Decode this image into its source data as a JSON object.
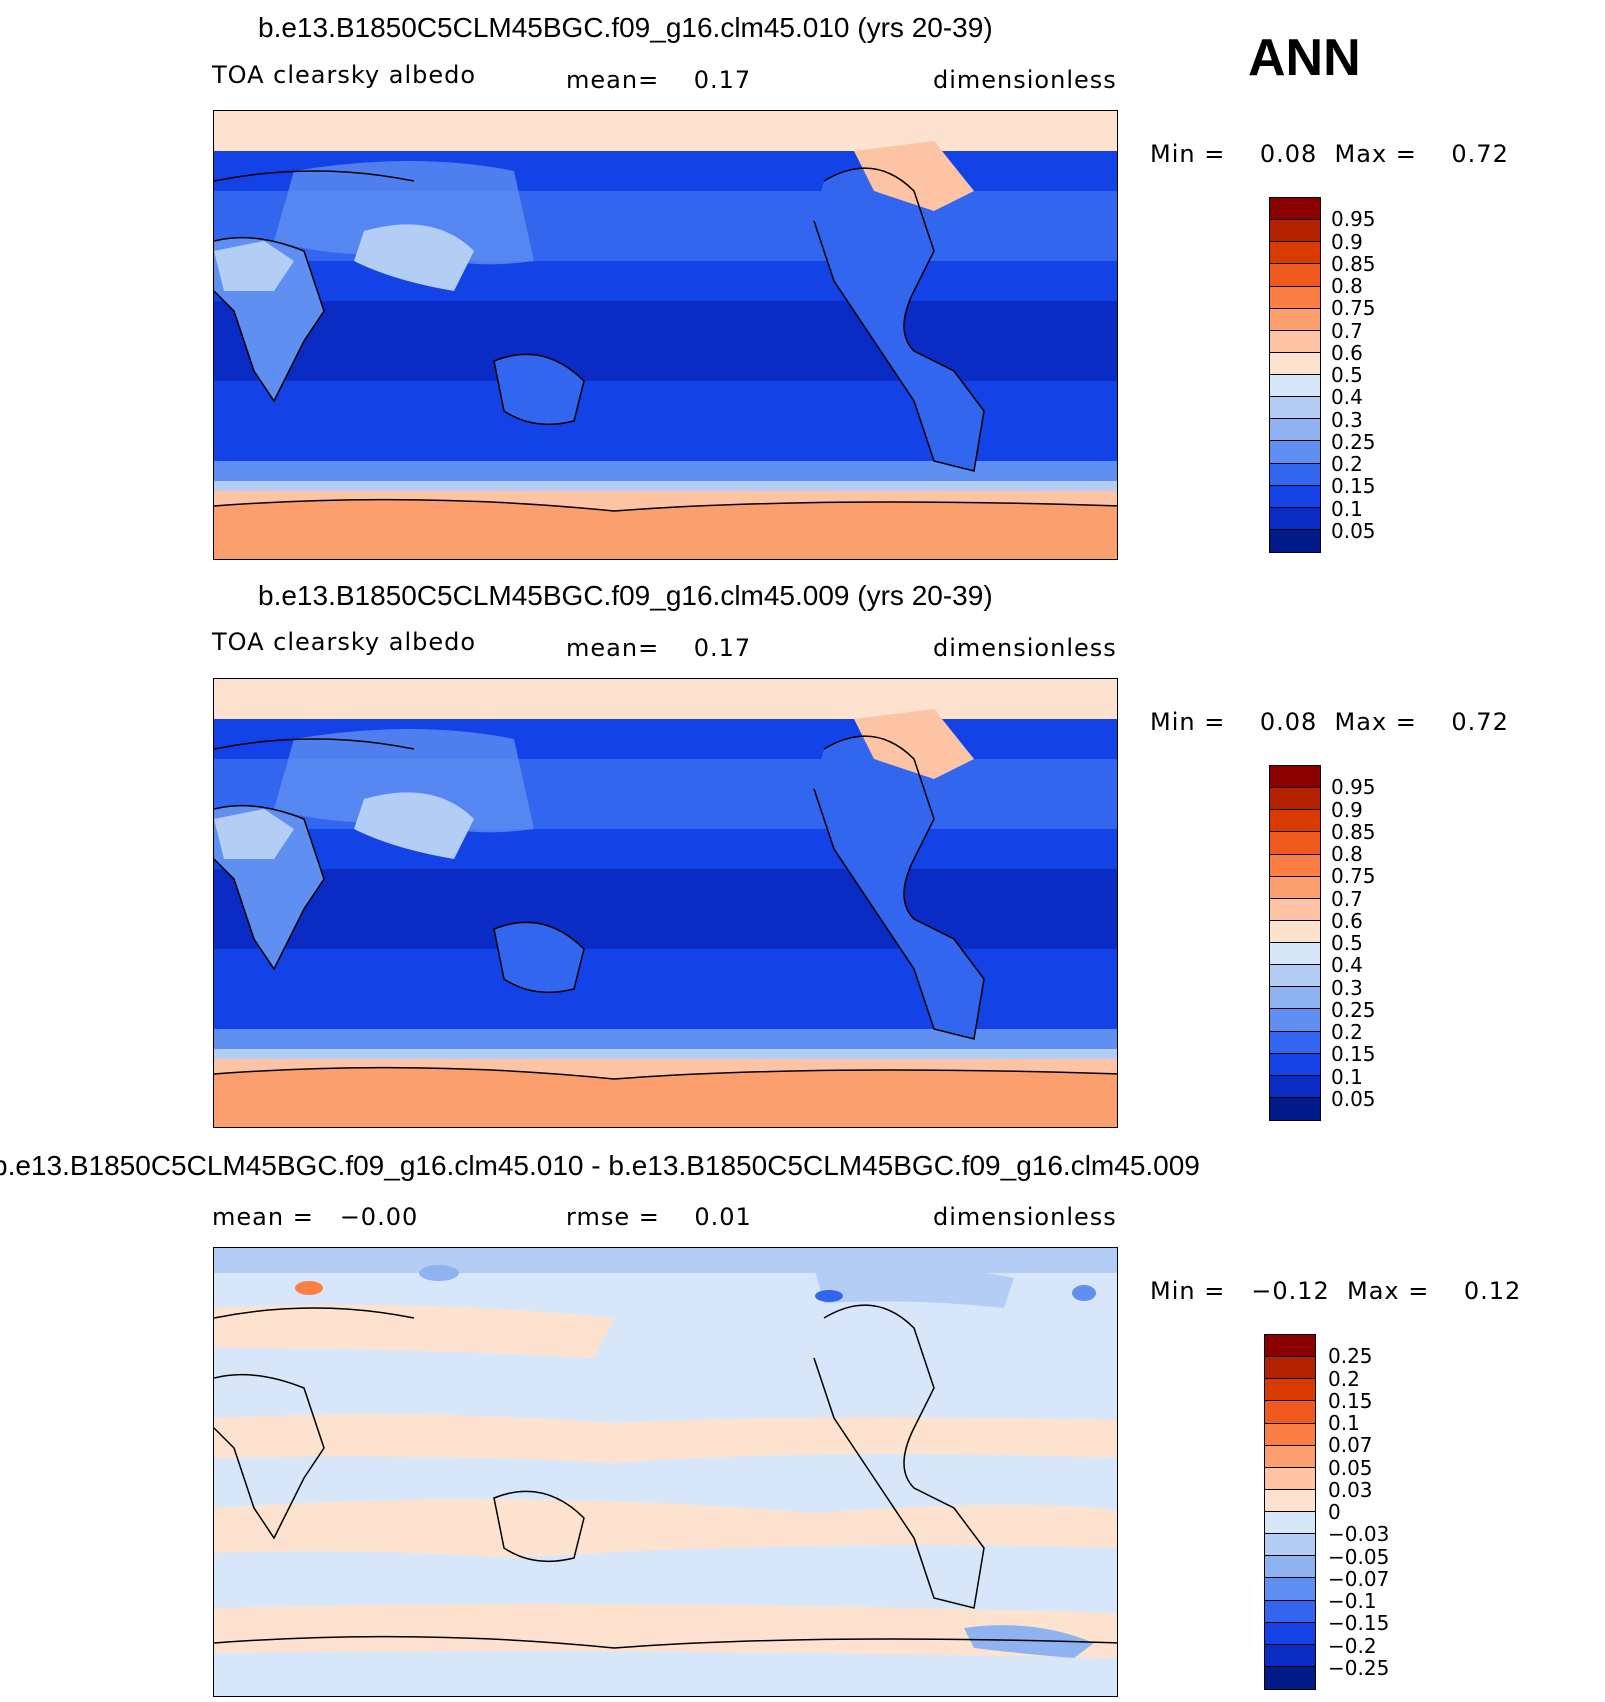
{
  "header": {
    "season": "ANN"
  },
  "panels": [
    {
      "title": "b.e13.B1850C5CLM45BGC.f09_g16.clm45.010 (yrs 20-39)",
      "left_label": "TOA clearsky albedo",
      "center_label": "mean=    0.17",
      "right_label": "dimensionless",
      "min_max": "Min =    0.08  Max =    0.72",
      "type": "absolute"
    },
    {
      "title": "b.e13.B1850C5CLM45BGC.f09_g16.clm45.009 (yrs 20-39)",
      "left_label": "TOA clearsky albedo",
      "center_label": "mean=    0.17",
      "right_label": "dimensionless",
      "min_max": "Min =    0.08  Max =    0.72",
      "type": "absolute"
    },
    {
      "title": "b.e13.B1850C5CLM45BGC.f09_g16.clm45.010 - b.e13.B1850C5CLM45BGC.f09_g16.clm45.009",
      "left_label": "mean =   −0.00",
      "center_label": "rmse =    0.01",
      "right_label": "dimensionless",
      "min_max": "Min =   −0.12  Max =    0.12",
      "type": "difference"
    }
  ],
  "colorbars": {
    "absolute": {
      "labels": [
        "0.95",
        "0.9",
        "0.85",
        "0.8",
        "0.75",
        "0.7",
        "0.6",
        "0.5",
        "0.4",
        "0.3",
        "0.25",
        "0.2",
        "0.15",
        "0.1",
        "0.05"
      ],
      "colors": [
        "#8b0000",
        "#b22200",
        "#d83a00",
        "#f05a1e",
        "#fb7f45",
        "#fc9f6f",
        "#fcc4a4",
        "#fde3cf",
        "#d7e6f8",
        "#b4cdf4",
        "#8fb2f0",
        "#5f8ff0",
        "#3266ee",
        "#1342e6",
        "#0a2bc4",
        "#001a88"
      ]
    },
    "difference": {
      "labels": [
        "0.25",
        "0.2",
        "0.15",
        "0.1",
        "0.07",
        "0.05",
        "0.03",
        "0",
        "−0.03",
        "−0.05",
        "−0.07",
        "−0.1",
        "−0.15",
        "−0.2",
        "−0.25"
      ],
      "colors": [
        "#8b0000",
        "#b22200",
        "#d83a00",
        "#f05a1e",
        "#fb7f45",
        "#fc9f6f",
        "#fcc4a4",
        "#fde3cf",
        "#d7e6f8",
        "#b4cdf4",
        "#8fb2f0",
        "#5f8ff0",
        "#3266ee",
        "#1342e6",
        "#0a2bc4",
        "#001a88"
      ]
    }
  },
  "chart_data": [
    {
      "type": "heatmap",
      "title": "b.e13.B1850C5CLM45BGC.f09_g16.clm45.010 (yrs 20-39)",
      "variable": "TOA clearsky albedo",
      "units": "dimensionless",
      "mean": 0.17,
      "min": 0.08,
      "max": 0.72,
      "contour_levels": [
        0.05,
        0.1,
        0.15,
        0.2,
        0.25,
        0.3,
        0.4,
        0.5,
        0.6,
        0.7,
        0.75,
        0.8,
        0.85,
        0.9,
        0.95
      ]
    },
    {
      "type": "heatmap",
      "title": "b.e13.B1850C5CLM45BGC.f09_g16.clm45.009 (yrs 20-39)",
      "variable": "TOA clearsky albedo",
      "units": "dimensionless",
      "mean": 0.17,
      "min": 0.08,
      "max": 0.72,
      "contour_levels": [
        0.05,
        0.1,
        0.15,
        0.2,
        0.25,
        0.3,
        0.4,
        0.5,
        0.6,
        0.7,
        0.75,
        0.8,
        0.85,
        0.9,
        0.95
      ]
    },
    {
      "type": "heatmap",
      "title": "b.e13.B1850C5CLM45BGC.f09_g16.clm45.010 - b.e13.B1850C5CLM45BGC.f09_g16.clm45.009",
      "units": "dimensionless",
      "mean": -0.0,
      "rmse": 0.01,
      "min": -0.12,
      "max": 0.12,
      "contour_levels": [
        -0.25,
        -0.2,
        -0.15,
        -0.1,
        -0.07,
        -0.05,
        -0.03,
        0,
        0.03,
        0.05,
        0.07,
        0.1,
        0.15,
        0.2,
        0.25
      ]
    }
  ]
}
